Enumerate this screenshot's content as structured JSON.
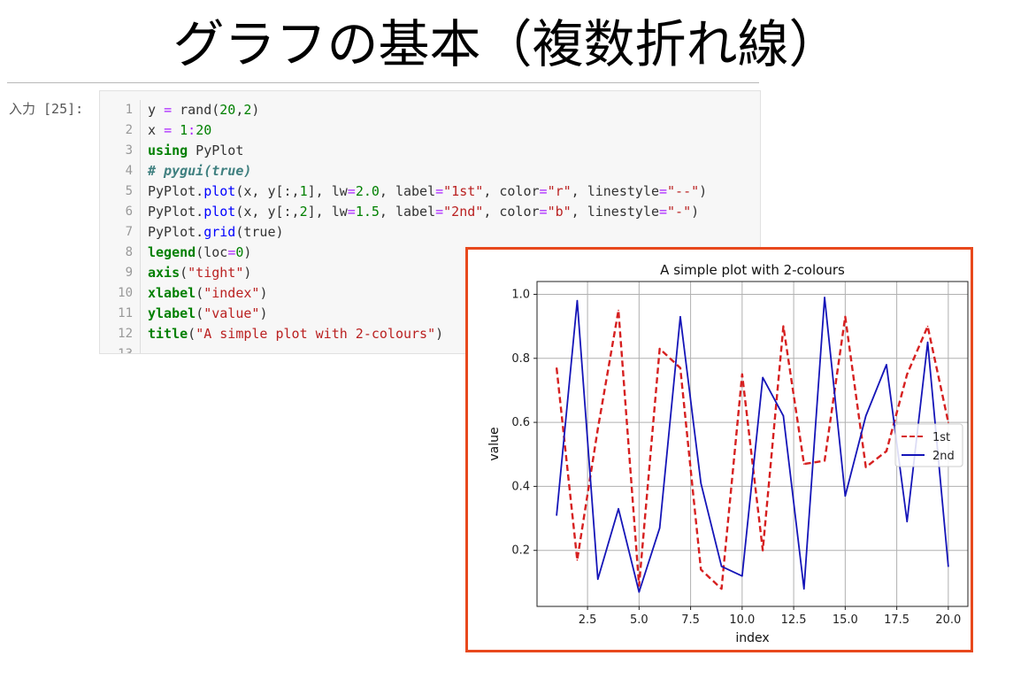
{
  "slide": {
    "title": "グラフの基本（複数折れ線）"
  },
  "cell": {
    "prompt": "入力 [25]:",
    "lines": [
      [
        [
          "y ",
          ""
        ],
        [
          "=",
          "op"
        ],
        [
          " rand(",
          ""
        ],
        [
          "20",
          "nm"
        ],
        [
          ",",
          ""
        ],
        [
          "2",
          "nm"
        ],
        [
          ")",
          ""
        ]
      ],
      [
        [
          "x ",
          ""
        ],
        [
          "=",
          "op"
        ],
        [
          " ",
          ""
        ],
        [
          "1",
          "nm"
        ],
        [
          ":",
          "op"
        ],
        [
          "20",
          "nm"
        ]
      ],
      [
        [
          "using",
          "kw"
        ],
        [
          " PyPlot",
          ""
        ]
      ],
      [
        [
          "# pygui(true)",
          "cm"
        ]
      ],
      [
        [
          "PyPlot.",
          ""
        ],
        [
          "plot",
          "fn"
        ],
        [
          "(x, y[:,",
          ""
        ],
        [
          "1",
          "nm"
        ],
        [
          "], lw",
          ""
        ],
        [
          "=",
          "op"
        ],
        [
          "2.0",
          "nm"
        ],
        [
          ", label",
          ""
        ],
        [
          "=",
          "op"
        ],
        [
          "\"1st\"",
          "st"
        ],
        [
          ", color",
          ""
        ],
        [
          "=",
          "op"
        ],
        [
          "\"r\"",
          "st"
        ],
        [
          ", linestyle",
          ""
        ],
        [
          "=",
          "op"
        ],
        [
          "\"--\"",
          "st"
        ],
        [
          ")",
          ""
        ]
      ],
      [
        [
          "PyPlot.",
          ""
        ],
        [
          "plot",
          "fn"
        ],
        [
          "(x, y[:,",
          ""
        ],
        [
          "2",
          "nm"
        ],
        [
          "], lw",
          ""
        ],
        [
          "=",
          "op"
        ],
        [
          "1.5",
          "nm"
        ],
        [
          ", label",
          ""
        ],
        [
          "=",
          "op"
        ],
        [
          "\"2nd\"",
          "st"
        ],
        [
          ", color",
          ""
        ],
        [
          "=",
          "op"
        ],
        [
          "\"b\"",
          "st"
        ],
        [
          ", linestyle",
          ""
        ],
        [
          "=",
          "op"
        ],
        [
          "\"-\"",
          "st"
        ],
        [
          ")",
          ""
        ]
      ],
      [
        [
          "PyPlot.",
          ""
        ],
        [
          "grid",
          "fn"
        ],
        [
          "(true)",
          ""
        ]
      ],
      [
        [
          "legend",
          "kw"
        ],
        [
          "(loc",
          ""
        ],
        [
          "=",
          "op"
        ],
        [
          "0",
          "nm"
        ],
        [
          ")",
          ""
        ]
      ],
      [
        [
          "axis",
          "kw"
        ],
        [
          "(",
          ""
        ],
        [
          "\"tight\"",
          "st"
        ],
        [
          ")",
          ""
        ]
      ],
      [
        [
          "xlabel",
          "kw"
        ],
        [
          "(",
          ""
        ],
        [
          "\"index\"",
          "st"
        ],
        [
          ")",
          ""
        ]
      ],
      [
        [
          "ylabel",
          "kw"
        ],
        [
          "(",
          ""
        ],
        [
          "\"value\"",
          "st"
        ],
        [
          ")",
          ""
        ]
      ],
      [
        [
          "title",
          "kw"
        ],
        [
          "(",
          ""
        ],
        [
          "\"A simple plot with 2-colours\"",
          "st"
        ],
        [
          ")",
          ""
        ]
      ],
      [
        [
          "",
          ""
        ]
      ]
    ]
  },
  "chart_data": {
    "type": "line",
    "title": "A simple plot with 2-colours",
    "xlabel": "index",
    "ylabel": "value",
    "xlim": [
      0.05,
      20.95
    ],
    "ylim": [
      0.025,
      1.04
    ],
    "xticks": [
      2.5,
      5.0,
      7.5,
      10.0,
      12.5,
      15.0,
      17.5,
      20.0
    ],
    "yticks": [
      0.2,
      0.4,
      0.6,
      0.8,
      1.0
    ],
    "grid": true,
    "legend_position": "center-right",
    "x": [
      1,
      2,
      3,
      4,
      5,
      6,
      7,
      8,
      9,
      10,
      11,
      12,
      13,
      14,
      15,
      16,
      17,
      18,
      19,
      20
    ],
    "series": [
      {
        "name": "1st",
        "color": "#d62020",
        "linestyle": "dashed",
        "values": [
          0.77,
          0.17,
          0.58,
          0.95,
          0.09,
          0.83,
          0.77,
          0.14,
          0.08,
          0.75,
          0.2,
          0.9,
          0.47,
          0.48,
          0.93,
          0.46,
          0.51,
          0.75,
          0.9,
          0.6
        ]
      },
      {
        "name": "2nd",
        "color": "#1515b8",
        "linestyle": "solid",
        "values": [
          0.31,
          0.98,
          0.11,
          0.33,
          0.07,
          0.27,
          0.93,
          0.41,
          0.15,
          0.12,
          0.74,
          0.62,
          0.08,
          0.99,
          0.37,
          0.62,
          0.78,
          0.29,
          0.85,
          0.15
        ]
      }
    ]
  }
}
